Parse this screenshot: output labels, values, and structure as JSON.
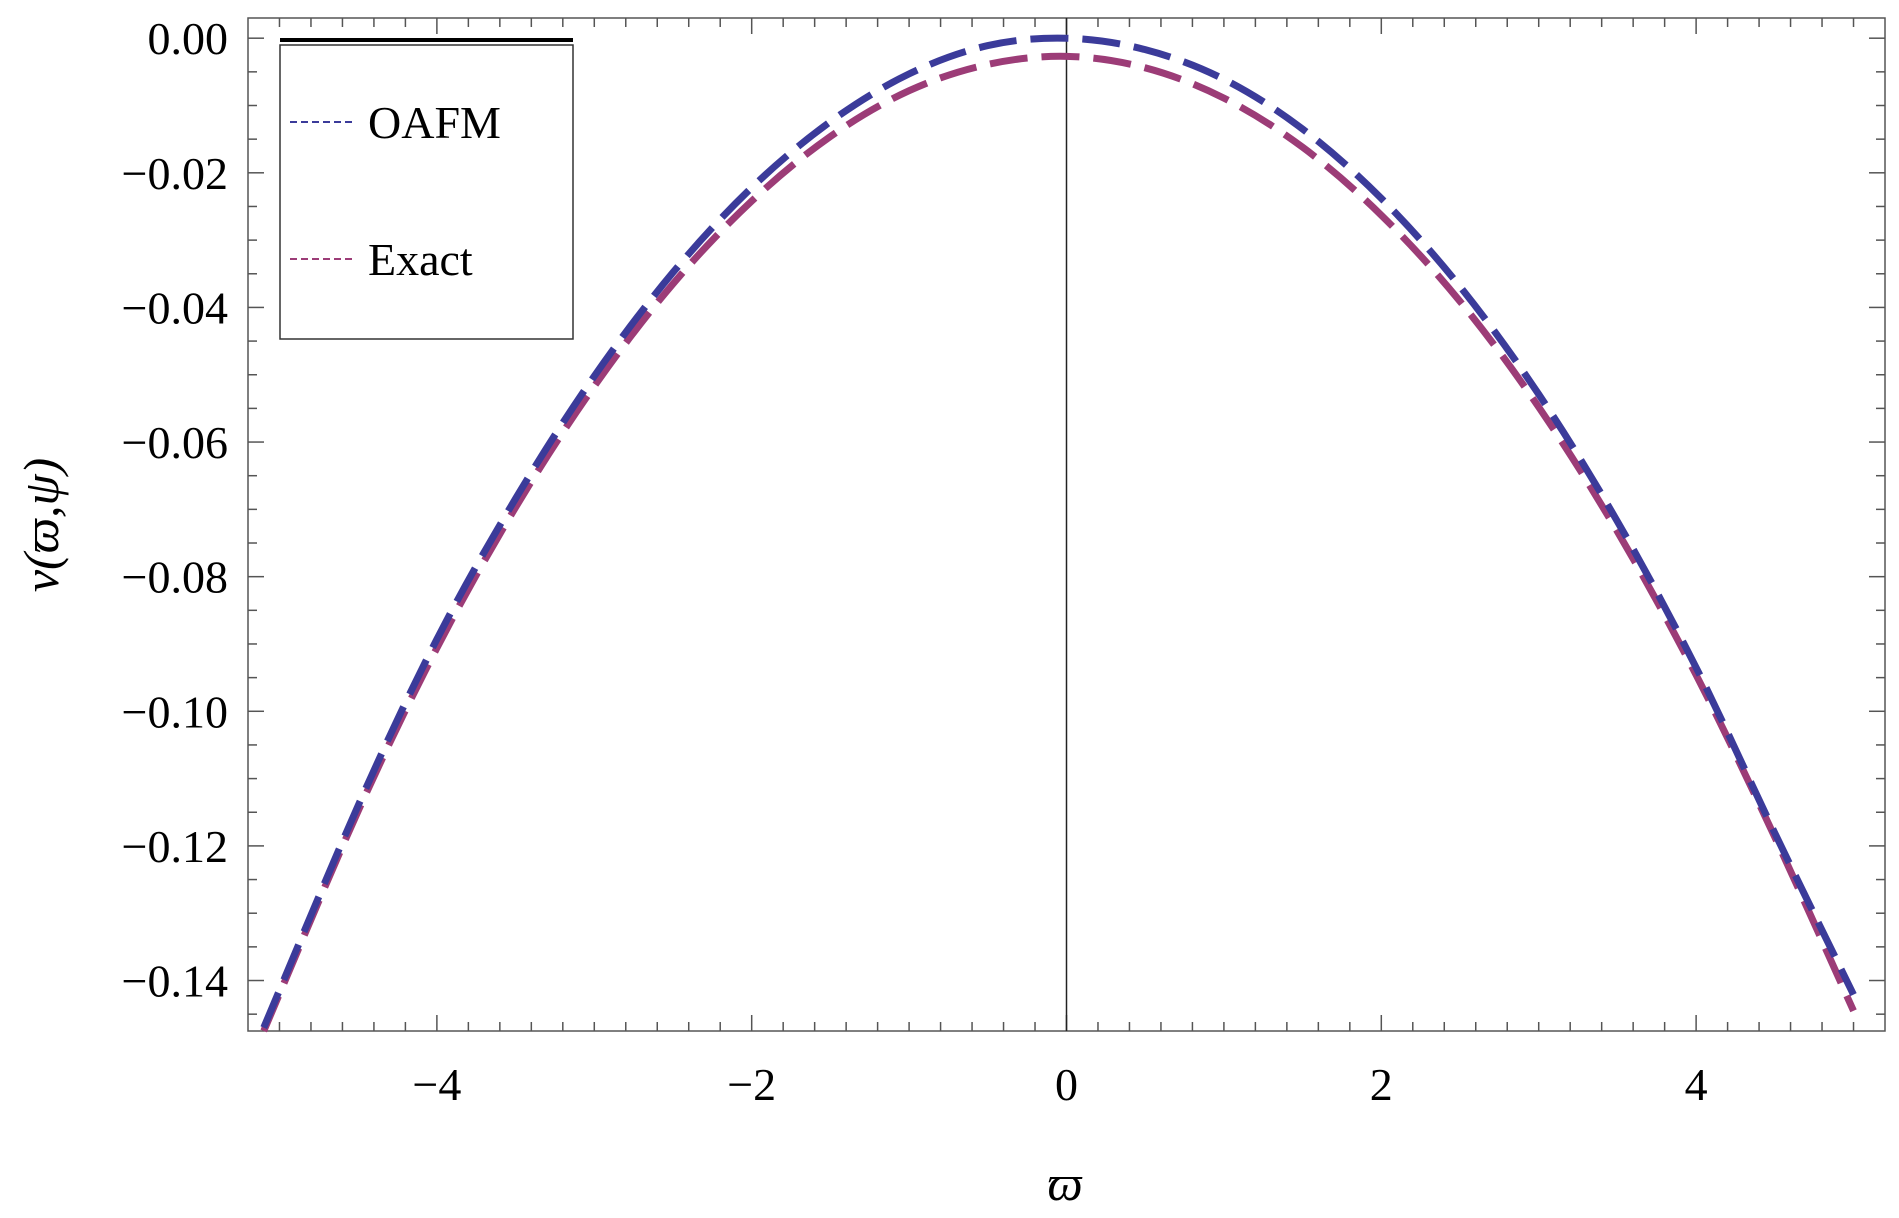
{
  "chart_data": {
    "type": "line",
    "title": "",
    "xlabel": "ϖ",
    "ylabel": "ν(ϖ,ψ)",
    "xlim": [
      -5.2,
      5.2
    ],
    "ylim": [
      -0.1475,
      0.003
    ],
    "xticks": [
      -4,
      -2,
      0,
      2,
      4
    ],
    "xtick_labels": [
      "−4",
      "−2",
      "0",
      "2",
      "4"
    ],
    "yticks": [
      0.0,
      -0.02,
      -0.04,
      -0.06,
      -0.08,
      -0.1,
      -0.12,
      -0.14
    ],
    "ytick_labels": [
      "0.00",
      "−0.02",
      "−0.04",
      "−0.06",
      "−0.08",
      "−0.10",
      "−0.12",
      "−0.14"
    ],
    "grid": false,
    "legend_position": "top-left",
    "x": [
      -5.1,
      -4.5,
      -4.0,
      -3.5,
      -3.0,
      -2.5,
      -2.0,
      -1.5,
      -1.0,
      -0.5,
      0.0,
      0.5,
      1.0,
      1.5,
      2.0,
      2.5,
      3.0,
      3.5,
      4.0,
      4.5,
      5.0
    ],
    "series": [
      {
        "name": "OAFM",
        "color": "#3b3b9a",
        "style": "dashed",
        "values": [
          -0.147,
          -0.114,
          -0.0893,
          -0.0684,
          -0.0502,
          -0.0348,
          -0.0222,
          -0.0124,
          -0.0053,
          -0.0011,
          0.0,
          -0.0017,
          -0.0061,
          -0.0135,
          -0.0238,
          -0.0369,
          -0.0529,
          -0.0718,
          -0.0935,
          -0.1181,
          -0.1421
        ]
      },
      {
        "name": "Exact",
        "color": "#9c3c77",
        "style": "dashed",
        "values": [
          -0.1475,
          -0.1148,
          -0.0906,
          -0.0697,
          -0.0517,
          -0.0365,
          -0.0242,
          -0.0146,
          -0.0078,
          -0.0039,
          -0.0027,
          -0.0044,
          -0.0089,
          -0.0162,
          -0.0263,
          -0.0391,
          -0.0548,
          -0.0733,
          -0.0946,
          -0.1187,
          -0.1445
        ]
      }
    ]
  }
}
